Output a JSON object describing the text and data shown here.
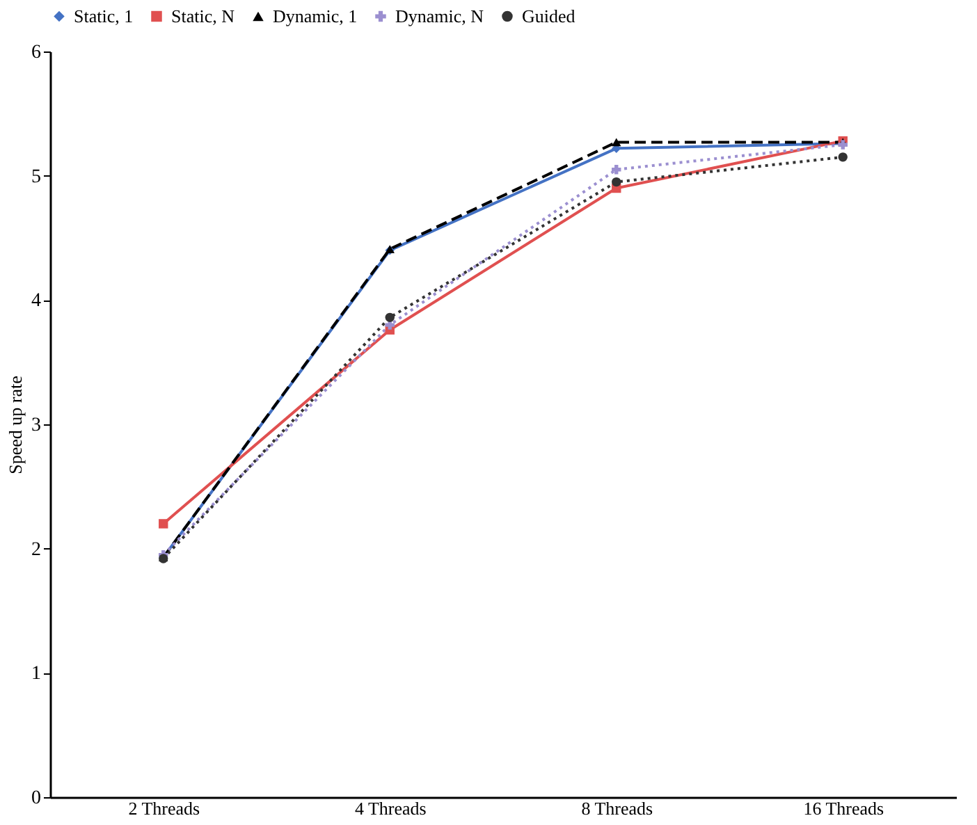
{
  "chart_data": {
    "type": "line",
    "ylabel": "Speed up rate",
    "categories": [
      "2 Threads",
      "4 Threads",
      "8 Threads",
      "16 Threads"
    ],
    "series": [
      {
        "name": "Static, 1",
        "color": "#4472c4",
        "line_style": "solid",
        "marker": "diamond",
        "values": [
          1.93,
          4.4,
          5.22,
          5.26
        ]
      },
      {
        "name": "Static, N",
        "color": "#e05050",
        "line_style": "solid",
        "marker": "square",
        "values": [
          2.2,
          3.76,
          4.9,
          5.28
        ]
      },
      {
        "name": "Dynamic, 1",
        "color": "#000000",
        "line_style": "dashed",
        "marker": "triangle",
        "values": [
          1.93,
          4.41,
          5.27,
          5.27
        ]
      },
      {
        "name": "Dynamic, N",
        "color": "#9b8fd0",
        "line_style": "dotted",
        "marker": "cross",
        "values": [
          1.95,
          3.8,
          5.05,
          5.25
        ]
      },
      {
        "name": "Guided",
        "color": "#333333",
        "line_style": "dotted",
        "marker": "circle",
        "values": [
          1.92,
          3.86,
          4.95,
          5.15
        ]
      }
    ],
    "ylim": [
      0,
      6
    ],
    "yticks": [
      0,
      1,
      2,
      3,
      4,
      5,
      6
    ],
    "grid": false,
    "legend": "top"
  }
}
